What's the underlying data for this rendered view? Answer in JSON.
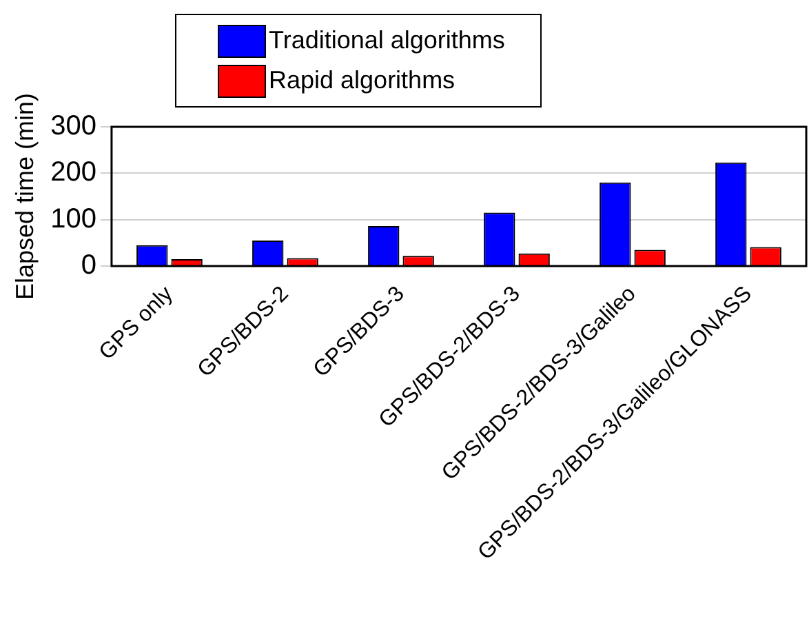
{
  "chart_data": {
    "type": "bar",
    "ylabel": "Elapsed time (min)",
    "categories": [
      "GPS only",
      "GPS/BDS-2",
      "GPS/BDS-3",
      "GPS/BDS-2/BDS-3",
      "GPS/BDS-2/BDS-3/Galileo",
      "GPS/BDS-2/BDS-3/Galileo/GLONASS"
    ],
    "series": [
      {
        "name": "Traditional algorithms",
        "color": "#0000ff",
        "values": [
          45,
          55,
          86,
          115,
          180,
          223
        ]
      },
      {
        "name": "Rapid algorithms",
        "color": "#ff0000",
        "values": [
          15,
          17,
          22,
          27,
          35,
          41
        ]
      }
    ],
    "ylim": [
      0,
      300
    ],
    "yticks": [
      0,
      100,
      200,
      300
    ],
    "grid": "y",
    "legend": "top"
  }
}
